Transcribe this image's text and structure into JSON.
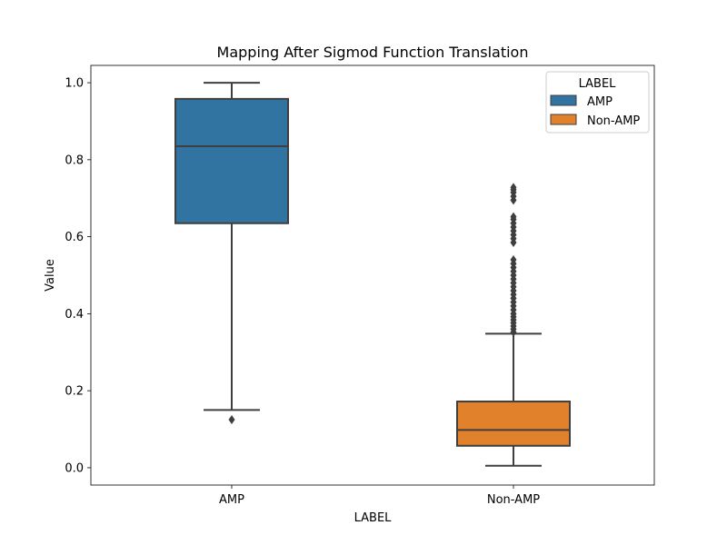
{
  "chart_data": {
    "type": "box",
    "title": "Mapping After Sigmod Function Translation",
    "xlabel": "LABEL",
    "ylabel": "Value",
    "ylim": [
      -0.045,
      1.045
    ],
    "yticks": [
      0.0,
      0.2,
      0.4,
      0.6,
      0.8,
      1.0
    ],
    "ytick_labels": [
      "0.0",
      "0.2",
      "0.4",
      "0.6",
      "0.8",
      "1.0"
    ],
    "categories": [
      "AMP",
      "Non-AMP"
    ],
    "grid": false,
    "legend": {
      "title": "LABEL",
      "placement": "top-right",
      "entries": [
        {
          "label": "AMP",
          "color": "#3274a1"
        },
        {
          "label": "Non-AMP",
          "color": "#e1812c"
        }
      ]
    },
    "series": [
      {
        "name": "AMP",
        "category": "AMP",
        "color": "#3274a1",
        "whisker_low": 0.15,
        "q1": 0.635,
        "median": 0.835,
        "q3": 0.958,
        "whisker_high": 1.0,
        "outliers": [
          0.125
        ]
      },
      {
        "name": "Non-AMP",
        "category": "Non-AMP",
        "color": "#e1812c",
        "whisker_low": 0.005,
        "q1": 0.057,
        "median": 0.098,
        "q3": 0.172,
        "whisker_high": 0.348,
        "outliers": [
          0.352,
          0.36,
          0.368,
          0.376,
          0.384,
          0.392,
          0.4,
          0.41,
          0.42,
          0.43,
          0.44,
          0.45,
          0.46,
          0.47,
          0.48,
          0.49,
          0.5,
          0.51,
          0.52,
          0.53,
          0.54,
          0.585,
          0.595,
          0.605,
          0.615,
          0.625,
          0.635,
          0.645,
          0.652,
          0.695,
          0.705,
          0.715,
          0.722,
          0.728
        ]
      }
    ]
  }
}
